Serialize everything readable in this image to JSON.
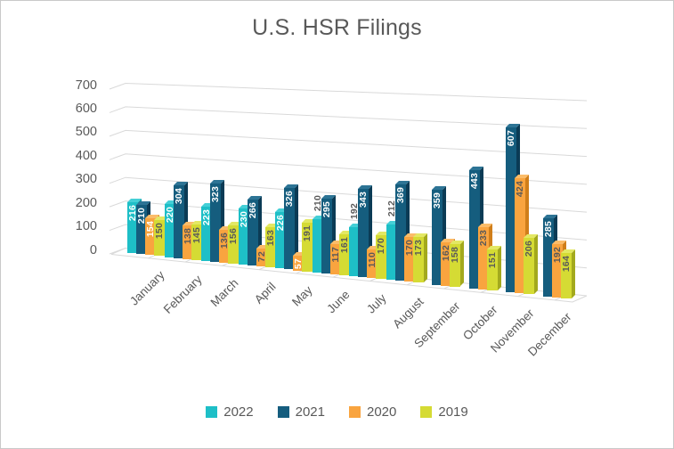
{
  "title": "U.S. HSR Filings",
  "chart_data": {
    "type": "bar",
    "style": "3d-column",
    "title": "U.S. HSR Filings",
    "categories": [
      "January",
      "February",
      "March",
      "April",
      "May",
      "June",
      "July",
      "August",
      "September",
      "October",
      "November",
      "December"
    ],
    "series": [
      {
        "name": "2022",
        "color": "#1ebfc7",
        "side_color": "#0e96a3",
        "top_color": "#44cfd6",
        "values": [
          216,
          220,
          223,
          230,
          226,
          210,
          192,
          212,
          null,
          null,
          null,
          null
        ],
        "label_styles": [
          "in",
          "in",
          "in",
          "in",
          "in",
          "out",
          "out",
          "out",
          null,
          null,
          null,
          null
        ],
        "label_colors": [
          "#ffffff",
          "#ffffff",
          "#ffffff",
          "#ffffff",
          "#ffffff",
          "#595959",
          "#595959",
          "#595959",
          null,
          null,
          null,
          null
        ]
      },
      {
        "name": "2021",
        "color": "#155d7e",
        "side_color": "#0b3b55",
        "top_color": "#2d7495",
        "values": [
          210,
          304,
          323,
          266,
          326,
          295,
          343,
          369,
          359,
          443,
          607,
          285
        ],
        "label_styles": [
          "in",
          "in",
          "in",
          "in",
          "in",
          "in",
          "in",
          "in",
          "in",
          "in",
          "in",
          "in"
        ],
        "label_colors": [
          "#ffffff",
          "#ffffff",
          "#ffffff",
          "#ffffff",
          "#ffffff",
          "#ffffff",
          "#ffffff",
          "#ffffff",
          "#ffffff",
          "#ffffff",
          "#ffffff",
          "#ffffff"
        ]
      },
      {
        "name": "2020",
        "color": "#f9a43f",
        "side_color": "#d07e1a",
        "top_color": "#fbbc69",
        "values": [
          154,
          138,
          136,
          72,
          57,
          117,
          110,
          170,
          162,
          233,
          424,
          192
        ],
        "label_styles": [
          "in",
          "in",
          "in",
          "in",
          "in",
          "in",
          "in",
          "in",
          "in",
          "in",
          "in",
          "in"
        ],
        "label_colors": [
          "#ffffff",
          "#595959",
          "#595959",
          "#595959",
          "#ffffff",
          "#595959",
          "#595959",
          "#595959",
          "#595959",
          "#595959",
          "#595959",
          "#595959"
        ]
      },
      {
        "name": "2019",
        "color": "#d5db34",
        "side_color": "#a3a91d",
        "top_color": "#e3e864",
        "values": [
          150,
          145,
          156,
          163,
          191,
          161,
          170,
          173,
          158,
          151,
          206,
          164
        ],
        "label_styles": [
          "in",
          "in",
          "in",
          "in",
          "in",
          "in",
          "in",
          "in",
          "in",
          "in",
          "in",
          "in"
        ],
        "label_colors": [
          "#595959",
          "#595959",
          "#595959",
          "#595959",
          "#595959",
          "#595959",
          "#595959",
          "#595959",
          "#595959",
          "#595959",
          "#595959",
          "#595959"
        ]
      }
    ],
    "ylim": [
      0,
      700
    ],
    "ytick_step": 100,
    "yticks": [
      "0",
      "100",
      "200",
      "300",
      "400",
      "500",
      "600",
      "700"
    ],
    "grid": true,
    "grid_color": "#d9d9d9",
    "axis_text_color": "#595959",
    "legend_position": "bottom"
  }
}
